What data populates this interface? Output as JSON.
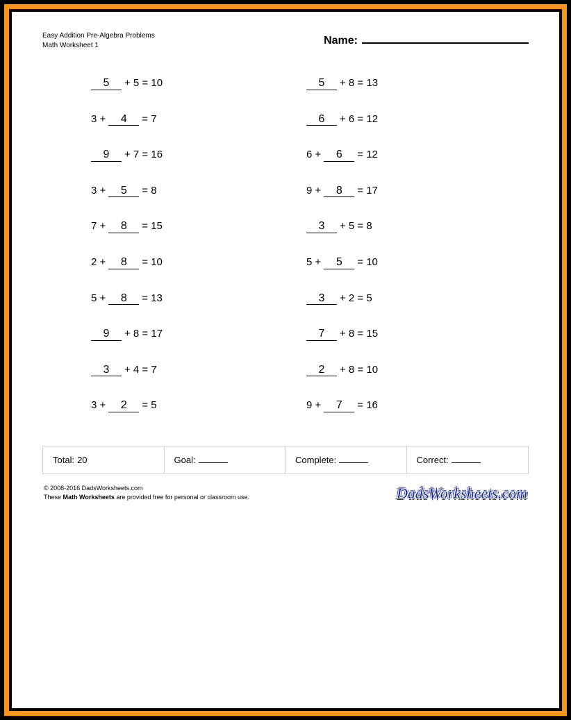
{
  "colors": {
    "outer_border": "#000000",
    "accent_border": "#f7941e",
    "inner_border": "#000000",
    "background": "#ffffff",
    "text": "#000000",
    "summary_border": "#d0d0d0",
    "brand_color": "#1a2a8a"
  },
  "header": {
    "title_line1": "Easy Addition Pre-Algebra Problems",
    "title_line2": "Math Worksheet 1",
    "name_label": "Name:"
  },
  "problems": {
    "left": [
      {
        "blank_first": true,
        "answer": "5",
        "a": "5",
        "result": "10"
      },
      {
        "blank_first": false,
        "answer": "4",
        "a": "3",
        "result": "7"
      },
      {
        "blank_first": true,
        "answer": "9",
        "a": "7",
        "result": "16"
      },
      {
        "blank_first": false,
        "answer": "5",
        "a": "3",
        "result": "8"
      },
      {
        "blank_first": false,
        "answer": "8",
        "a": "7",
        "result": "15"
      },
      {
        "blank_first": false,
        "answer": "8",
        "a": "2",
        "result": "10"
      },
      {
        "blank_first": false,
        "answer": "8",
        "a": "5",
        "result": "13"
      },
      {
        "blank_first": true,
        "answer": "9",
        "a": "8",
        "result": "17"
      },
      {
        "blank_first": true,
        "answer": "3",
        "a": "4",
        "result": "7"
      },
      {
        "blank_first": false,
        "answer": "2",
        "a": "3",
        "result": "5"
      }
    ],
    "right": [
      {
        "blank_first": true,
        "answer": "5",
        "a": "8",
        "result": "13"
      },
      {
        "blank_first": true,
        "answer": "6",
        "a": "6",
        "result": "12"
      },
      {
        "blank_first": false,
        "answer": "6",
        "a": "6",
        "result": "12"
      },
      {
        "blank_first": false,
        "answer": "8",
        "a": "9",
        "result": "17"
      },
      {
        "blank_first": true,
        "answer": "3",
        "a": "5",
        "result": "8"
      },
      {
        "blank_first": false,
        "answer": "5",
        "a": "5",
        "result": "10"
      },
      {
        "blank_first": true,
        "answer": "3",
        "a": "2",
        "result": "5"
      },
      {
        "blank_first": true,
        "answer": "7",
        "a": "8",
        "result": "15"
      },
      {
        "blank_first": true,
        "answer": "2",
        "a": "8",
        "result": "10"
      },
      {
        "blank_first": false,
        "answer": "7",
        "a": "9",
        "result": "16"
      }
    ]
  },
  "summary": {
    "total_label": "Total:",
    "total_value": "20",
    "goal_label": "Goal:",
    "complete_label": "Complete:",
    "correct_label": "Correct:"
  },
  "footer": {
    "copyright": "© 2008-2016 DadsWorksheets.com",
    "line2_prefix": "These ",
    "line2_bold": "Math Worksheets",
    "line2_suffix": " are provided free for personal or classroom use.",
    "brand": "DadsWorksheets.com"
  }
}
